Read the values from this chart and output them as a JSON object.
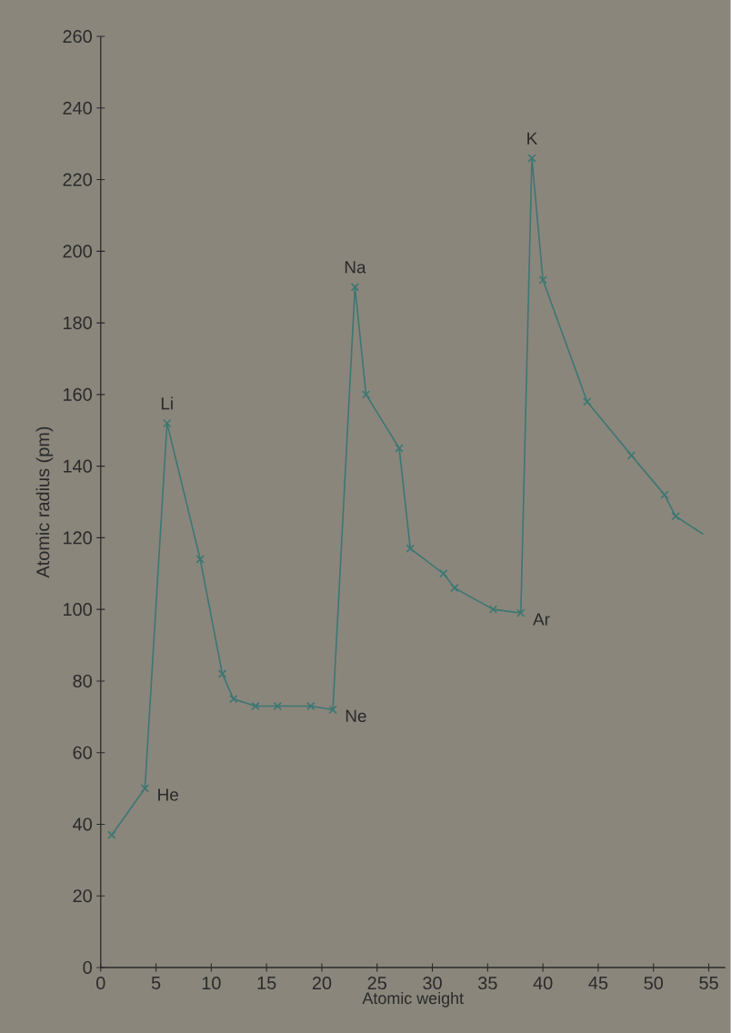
{
  "chart_data": {
    "type": "line",
    "xlabel": "Atomic weight",
    "ylabel": "Atomic radius (pm)",
    "series": [
      {
        "color": "#3c7773",
        "x": [
          1,
          4,
          6,
          9,
          11,
          12,
          14,
          16,
          19,
          21,
          23,
          24,
          27,
          28,
          31,
          32,
          35.5,
          38,
          39,
          40,
          44,
          48,
          51,
          52
        ],
        "values": [
          37,
          50,
          152,
          114,
          82,
          75,
          73,
          73,
          73,
          72,
          190,
          160,
          145,
          117,
          110,
          106,
          100,
          99,
          226,
          192,
          158,
          143,
          132,
          126
        ]
      },
      {
        "type": "line",
        "marker": "none",
        "color": "#3c7773",
        "x": [
          52,
          54.5
        ],
        "values": [
          126,
          121
        ]
      }
    ],
    "xlim": [
      0,
      56.5
    ],
    "ylim": [
      0,
      260
    ],
    "xticks": [
      0,
      5,
      10,
      15,
      20,
      25,
      30,
      35,
      40,
      45,
      50,
      55
    ],
    "yticks": [
      0,
      20,
      40,
      60,
      80,
      100,
      120,
      140,
      160,
      180,
      200,
      220,
      240,
      260
    ],
    "marker": "cross",
    "line_style": "solid",
    "annotations": [
      {
        "text": "He",
        "x": 4,
        "y": 50
      },
      {
        "text": "Li",
        "x": 6,
        "y": 152
      },
      {
        "text": "Ne",
        "x": 21,
        "y": 72
      },
      {
        "text": "Na",
        "x": 23,
        "y": 190
      },
      {
        "text": "Ar",
        "x": 38,
        "y": 99
      },
      {
        "text": "K",
        "x": 39,
        "y": 226
      }
    ]
  }
}
